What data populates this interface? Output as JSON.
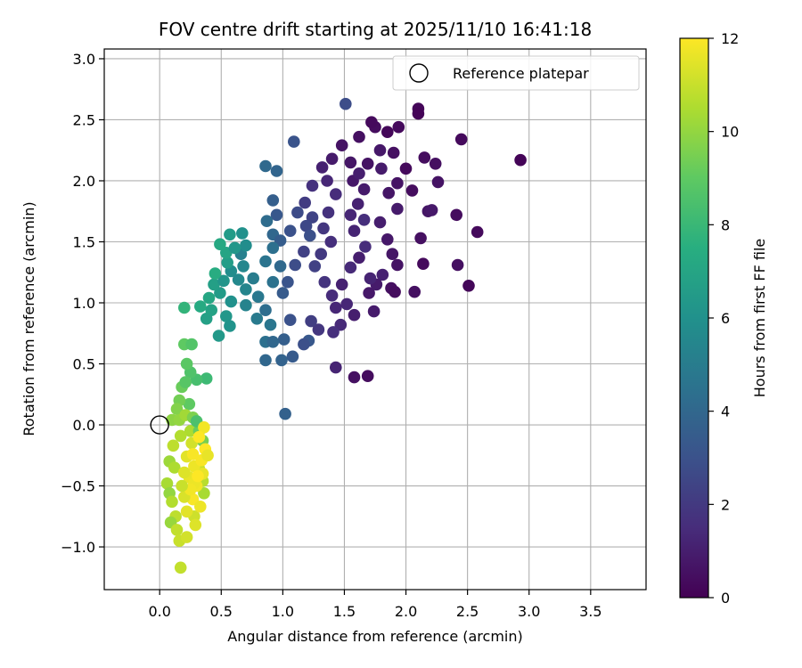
{
  "chart_data": {
    "type": "scatter",
    "title": "FOV centre drift starting at 2025/11/10 16:41:18",
    "xlabel": "Angular distance from reference (arcmin)",
    "ylabel": "Rotation from reference (arcmin)",
    "xlim": [
      -0.45,
      3.95
    ],
    "ylim": [
      -1.35,
      3.08
    ],
    "xticks": [
      "0.0",
      "0.5",
      "1.0",
      "1.5",
      "2.0",
      "2.5",
      "3.0",
      "3.5"
    ],
    "yticks": [
      "−1.0",
      "−0.5",
      "0.0",
      "0.5",
      "1.0",
      "1.5",
      "2.0",
      "2.5",
      "3.0"
    ],
    "grid": true,
    "legend": {
      "placement": "top-right",
      "entries": [
        "Reference platepar"
      ]
    },
    "reference": {
      "x": 0.0,
      "y": 0.0
    },
    "colorbar": {
      "label": "Hours from first FF file",
      "colormap": "viridis",
      "range": [
        0,
        12
      ],
      "ticks": [
        "0",
        "2",
        "4",
        "6",
        "8",
        "10",
        "12"
      ]
    },
    "points": [
      [
        2.93,
        2.17,
        0.1
      ],
      [
        2.58,
        1.58,
        0.3
      ],
      [
        2.51,
        1.14,
        0.2
      ],
      [
        2.45,
        2.34,
        0.3
      ],
      [
        2.42,
        1.31,
        0.5
      ],
      [
        2.41,
        1.72,
        0.4
      ],
      [
        2.1,
        2.59,
        0.2
      ],
      [
        2.1,
        2.55,
        0.1
      ],
      [
        2.14,
        1.32,
        0.3
      ],
      [
        2.07,
        1.09,
        0.5
      ],
      [
        2.15,
        2.19,
        0.4
      ],
      [
        2.24,
        2.14,
        0.5
      ],
      [
        2.26,
        1.99,
        0.6
      ],
      [
        2.18,
        1.75,
        0.7
      ],
      [
        2.21,
        1.76,
        0.8
      ],
      [
        2.12,
        1.53,
        0.5
      ],
      [
        1.93,
        1.98,
        0.6
      ],
      [
        2.05,
        1.92,
        0.4
      ],
      [
        2.0,
        2.1,
        0.3
      ],
      [
        1.9,
        2.23,
        0.5
      ],
      [
        1.85,
        2.4,
        0.2
      ],
      [
        1.94,
        2.44,
        0.3
      ],
      [
        1.75,
        2.44,
        0.4
      ],
      [
        1.72,
        2.48,
        0.3
      ],
      [
        1.62,
        2.36,
        0.5
      ],
      [
        1.69,
        2.14,
        0.6
      ],
      [
        1.79,
        2.25,
        0.8
      ],
      [
        1.8,
        2.1,
        0.9
      ],
      [
        1.86,
        1.9,
        0.7
      ],
      [
        1.93,
        1.77,
        0.9
      ],
      [
        1.79,
        1.66,
        1.0
      ],
      [
        1.85,
        1.52,
        0.8
      ],
      [
        1.89,
        1.4,
        0.7
      ],
      [
        1.93,
        1.31,
        0.6
      ],
      [
        1.81,
        1.23,
        1.1
      ],
      [
        1.76,
        1.15,
        0.9
      ],
      [
        1.88,
        1.12,
        0.5
      ],
      [
        1.91,
        1.09,
        0.4
      ],
      [
        1.7,
        1.08,
        0.8
      ],
      [
        1.71,
        1.2,
        1.2
      ],
      [
        1.74,
        0.93,
        0.9
      ],
      [
        1.69,
        0.4,
        0.4
      ],
      [
        1.58,
        0.39,
        0.5
      ],
      [
        1.43,
        0.47,
        1.2
      ],
      [
        1.58,
        0.9,
        1.0
      ],
      [
        1.52,
        0.99,
        1.3
      ],
      [
        1.48,
        1.15,
        1.1
      ],
      [
        1.55,
        1.29,
        1.4
      ],
      [
        1.62,
        1.37,
        1.0
      ],
      [
        1.67,
        1.46,
        1.5
      ],
      [
        1.58,
        1.59,
        1.2
      ],
      [
        1.66,
        1.68,
        1.6
      ],
      [
        1.55,
        1.72,
        1.3
      ],
      [
        1.61,
        1.81,
        1.1
      ],
      [
        1.66,
        1.93,
        0.9
      ],
      [
        1.57,
        2.0,
        0.8
      ],
      [
        1.62,
        2.06,
        1.0
      ],
      [
        1.55,
        2.15,
        0.7
      ],
      [
        1.48,
        2.29,
        0.6
      ],
      [
        1.4,
        2.18,
        0.9
      ],
      [
        1.32,
        2.11,
        1.1
      ],
      [
        1.36,
        2.0,
        1.3
      ],
      [
        1.43,
        1.89,
        1.5
      ],
      [
        1.37,
        1.74,
        1.7
      ],
      [
        1.33,
        1.61,
        1.9
      ],
      [
        1.39,
        1.5,
        1.6
      ],
      [
        1.31,
        1.4,
        2.0
      ],
      [
        1.26,
        1.3,
        2.3
      ],
      [
        1.34,
        1.17,
        1.8
      ],
      [
        1.4,
        1.06,
        1.5
      ],
      [
        1.43,
        0.96,
        1.3
      ],
      [
        1.47,
        0.82,
        1.4
      ],
      [
        1.41,
        0.76,
        1.6
      ],
      [
        1.29,
        0.78,
        1.9
      ],
      [
        1.23,
        0.85,
        2.2
      ],
      [
        1.51,
        2.63,
        2.8
      ],
      [
        1.24,
        1.96,
        1.7
      ],
      [
        1.18,
        1.82,
        2.1
      ],
      [
        1.24,
        1.7,
        2.4
      ],
      [
        1.12,
        1.74,
        2.7
      ],
      [
        1.19,
        1.63,
        2.6
      ],
      [
        1.22,
        1.55,
        2.9
      ],
      [
        1.17,
        1.42,
        2.3
      ],
      [
        1.1,
        1.31,
        2.8
      ],
      [
        1.04,
        1.17,
        3.1
      ],
      [
        1.0,
        1.08,
        3.4
      ],
      [
        1.06,
        0.86,
        3.0
      ],
      [
        1.21,
        0.69,
        3.3
      ],
      [
        1.17,
        0.66,
        2.9
      ],
      [
        1.01,
        0.7,
        3.6
      ],
      [
        0.99,
        0.53,
        3.8
      ],
      [
        1.08,
        0.56,
        3.4
      ],
      [
        0.86,
        0.53,
        4.0
      ],
      [
        1.02,
        0.09,
        3.7
      ],
      [
        1.09,
        2.32,
        3.1
      ],
      [
        0.95,
        2.08,
        3.9
      ],
      [
        0.86,
        2.12,
        4.1
      ],
      [
        0.92,
        1.84,
        3.6
      ],
      [
        0.95,
        1.72,
        3.3
      ],
      [
        0.87,
        1.67,
        4.2
      ],
      [
        0.92,
        1.56,
        4.0
      ],
      [
        0.98,
        1.51,
        3.5
      ],
      [
        1.06,
        1.59,
        3.0
      ],
      [
        0.92,
        1.45,
        4.4
      ],
      [
        0.86,
        1.34,
        4.6
      ],
      [
        0.98,
        1.3,
        4.1
      ],
      [
        0.92,
        1.17,
        4.5
      ],
      [
        0.8,
        1.05,
        4.8
      ],
      [
        0.86,
        0.94,
        4.3
      ],
      [
        0.79,
        0.87,
        4.9
      ],
      [
        0.9,
        0.82,
        4.7
      ],
      [
        0.86,
        0.68,
        4.4
      ],
      [
        0.92,
        0.68,
        4.0
      ],
      [
        0.66,
        1.4,
        5.2
      ],
      [
        0.68,
        1.3,
        5.5
      ],
      [
        0.58,
        1.26,
        5.8
      ],
      [
        0.64,
        1.19,
        5.6
      ],
      [
        0.7,
        1.11,
        5.4
      ],
      [
        0.76,
        1.2,
        5.0
      ],
      [
        0.7,
        0.98,
        5.3
      ],
      [
        0.58,
        1.01,
        6.0
      ],
      [
        0.54,
        0.89,
        6.3
      ],
      [
        0.49,
        1.08,
        6.5
      ],
      [
        0.57,
        0.81,
        6.1
      ],
      [
        0.48,
        0.73,
        6.4
      ],
      [
        0.38,
        0.87,
        6.8
      ],
      [
        0.42,
        0.94,
        6.9
      ],
      [
        0.4,
        1.04,
        7.1
      ],
      [
        0.44,
        1.15,
        6.7
      ],
      [
        0.52,
        1.18,
        6.2
      ],
      [
        0.55,
        1.33,
        6.6
      ],
      [
        0.54,
        1.41,
        7.0
      ],
      [
        0.49,
        1.48,
        7.2
      ],
      [
        0.57,
        1.56,
        6.5
      ],
      [
        0.67,
        1.57,
        6.0
      ],
      [
        0.7,
        1.47,
        5.8
      ],
      [
        0.61,
        1.45,
        6.3
      ],
      [
        0.45,
        1.24,
        7.4
      ],
      [
        0.33,
        0.97,
        7.3
      ],
      [
        0.2,
        0.96,
        7.8
      ],
      [
        0.38,
        0.38,
        8.1
      ],
      [
        0.3,
        0.37,
        8.4
      ],
      [
        0.25,
        0.43,
        8.6
      ],
      [
        0.22,
        0.5,
        8.9
      ],
      [
        0.2,
        0.66,
        9.0
      ],
      [
        0.26,
        0.66,
        8.7
      ],
      [
        0.18,
        0.31,
        9.2
      ],
      [
        0.21,
        0.35,
        8.8
      ],
      [
        0.24,
        0.17,
        9.0
      ],
      [
        0.16,
        0.2,
        9.4
      ],
      [
        0.14,
        0.13,
        9.7
      ],
      [
        0.1,
        0.04,
        9.9
      ],
      [
        0.16,
        0.04,
        10.0
      ],
      [
        0.21,
        0.08,
        10.3
      ],
      [
        0.27,
        0.06,
        9.6
      ],
      [
        0.25,
        -0.05,
        10.5
      ],
      [
        0.17,
        -0.09,
        10.6
      ],
      [
        0.11,
        -0.17,
        10.8
      ],
      [
        0.08,
        -0.3,
        10.2
      ],
      [
        0.12,
        -0.35,
        10.5
      ],
      [
        0.06,
        -0.48,
        10.4
      ],
      [
        0.08,
        -0.56,
        10.0
      ],
      [
        0.1,
        -0.63,
        10.6
      ],
      [
        0.13,
        -0.75,
        10.8
      ],
      [
        0.09,
        -0.8,
        10.1
      ],
      [
        0.14,
        -0.86,
        10.9
      ],
      [
        0.16,
        -0.95,
        11.0
      ],
      [
        0.22,
        -0.92,
        11.2
      ],
      [
        0.17,
        -1.17,
        10.9
      ],
      [
        0.28,
        -0.75,
        11.1
      ],
      [
        0.36,
        -0.56,
        10.4
      ],
      [
        0.35,
        -0.46,
        10.7
      ],
      [
        0.32,
        -0.36,
        10.9
      ],
      [
        0.35,
        -0.13,
        9.5
      ],
      [
        0.32,
        -0.05,
        9.2
      ],
      [
        0.3,
        0.03,
        8.5
      ],
      [
        0.26,
        -0.15,
        11.2
      ],
      [
        0.22,
        -0.26,
        11.5
      ],
      [
        0.28,
        -0.34,
        11.7
      ],
      [
        0.24,
        -0.43,
        11.6
      ],
      [
        0.3,
        -0.5,
        11.8
      ],
      [
        0.27,
        -0.61,
        11.9
      ],
      [
        0.33,
        -0.67,
        11.7
      ],
      [
        0.22,
        -0.71,
        11.5
      ],
      [
        0.29,
        -0.82,
        11.4
      ],
      [
        0.2,
        -0.59,
        11.3
      ],
      [
        0.34,
        -0.29,
        11.9
      ],
      [
        0.37,
        -0.2,
        12.0
      ],
      [
        0.36,
        -0.02,
        11.8
      ],
      [
        0.32,
        -0.1,
        12.0
      ],
      [
        0.27,
        -0.24,
        11.9
      ],
      [
        0.35,
        -0.4,
        11.6
      ],
      [
        0.28,
        -0.48,
        11.7
      ],
      [
        0.25,
        -0.53,
        11.8
      ],
      [
        0.31,
        -0.42,
        12.0
      ],
      [
        0.39,
        -0.25,
        11.6
      ],
      [
        0.2,
        -0.39,
        11.4
      ],
      [
        0.18,
        -0.5,
        11.0
      ]
    ]
  }
}
